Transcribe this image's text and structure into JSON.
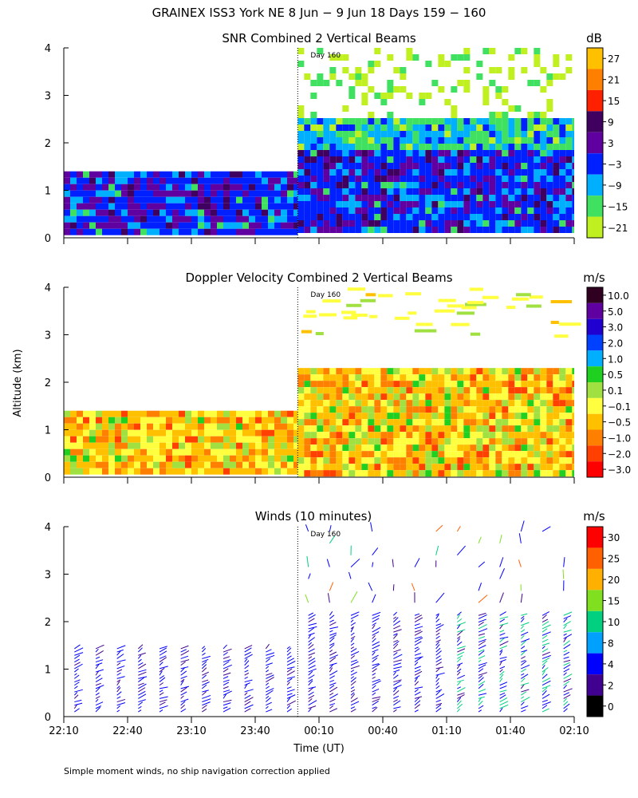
{
  "figure": {
    "title": "GRAINEX ISS3 York NE   8 Jun  −  9 Jun 18 Days 159 − 160",
    "ylabel": "Altitude (km)",
    "xlabel": "Time (UT)",
    "footnote": "Simple moment winds, no ship navigation correction applied",
    "day_marker": "Day 160"
  },
  "chart_data": [
    {
      "type": "heatmap",
      "title": "SNR Combined 2 Vertical Beams",
      "unit": "dB",
      "ylim": [
        0,
        4
      ],
      "yticks": [
        "0",
        "1",
        "2",
        "3",
        "4"
      ],
      "colorbar_labels": [
        "27",
        "21",
        "15",
        "9",
        "3",
        "−3",
        "−9",
        "−15",
        "−21"
      ],
      "colorbar_colors": [
        "#ffc000",
        "#ff8000",
        "#ff2000",
        "#400060",
        "#6000a0",
        "#0020ff",
        "#00b0ff",
        "#40e060",
        "#c0f020"
      ],
      "segments": [
        {
          "start": "22:10",
          "end": "00:00",
          "top_km": 1.4
        },
        {
          "start": "00:00",
          "end": "02:10",
          "top_km": 4.0
        }
      ]
    },
    {
      "type": "heatmap",
      "title": "Doppler Velocity Combined 2 Vertical Beams",
      "unit": "m/s",
      "ylim": [
        0,
        4
      ],
      "yticks": [
        "0",
        "1",
        "2",
        "3",
        "4"
      ],
      "colorbar_labels": [
        "10.0",
        "5.0",
        "3.0",
        "2.0",
        "1.0",
        "0.5",
        "0.1",
        "−0.1",
        "−0.5",
        "−1.0",
        "−2.0",
        "−3.0"
      ],
      "colorbar_colors": [
        "#300020",
        "#6000a0",
        "#2000d0",
        "#0040ff",
        "#00b0ff",
        "#20d020",
        "#a0e040",
        "#ffff40",
        "#ffc000",
        "#ff8000",
        "#ff4000",
        "#ff0000"
      ],
      "segments": [
        {
          "start": "22:10",
          "end": "00:00",
          "top_km": 1.4
        },
        {
          "start": "00:00",
          "end": "02:10",
          "top_km": 2.3
        }
      ]
    },
    {
      "type": "scatter",
      "title": "Winds (10 minutes)",
      "unit": "m/s",
      "ylim": [
        0,
        4
      ],
      "yticks": [
        "0",
        "1",
        "2",
        "3",
        "4"
      ],
      "xticks": [
        "22:10",
        "22:40",
        "23:10",
        "23:40",
        "00:10",
        "00:40",
        "01:10",
        "01:40",
        "02:10"
      ],
      "colorbar_labels": [
        "30",
        "25",
        "20",
        "15",
        "10",
        "8",
        "4",
        "2",
        "0"
      ],
      "colorbar_colors": [
        "#ff0000",
        "#ff6000",
        "#ffb000",
        "#80e020",
        "#00d080",
        "#00a0ff",
        "#0000ff",
        "#400090",
        "#000000"
      ],
      "profile_times": [
        "22:15",
        "22:25",
        "22:35",
        "22:45",
        "22:55",
        "23:05",
        "23:15",
        "23:25",
        "23:35",
        "23:45",
        "23:55",
        "00:05",
        "00:15",
        "00:25",
        "00:35",
        "00:45",
        "00:55",
        "01:05",
        "01:15",
        "01:25",
        "01:35",
        "01:45",
        "01:55",
        "02:05"
      ],
      "profile_tops_km": [
        1.45,
        1.45,
        1.45,
        1.45,
        1.45,
        1.45,
        1.45,
        1.45,
        1.45,
        1.45,
        1.45,
        4.0,
        4.0,
        4.0,
        4.0,
        4.0,
        4.0,
        4.0,
        4.0,
        4.0,
        4.0,
        4.0,
        4.0,
        4.0
      ]
    }
  ]
}
